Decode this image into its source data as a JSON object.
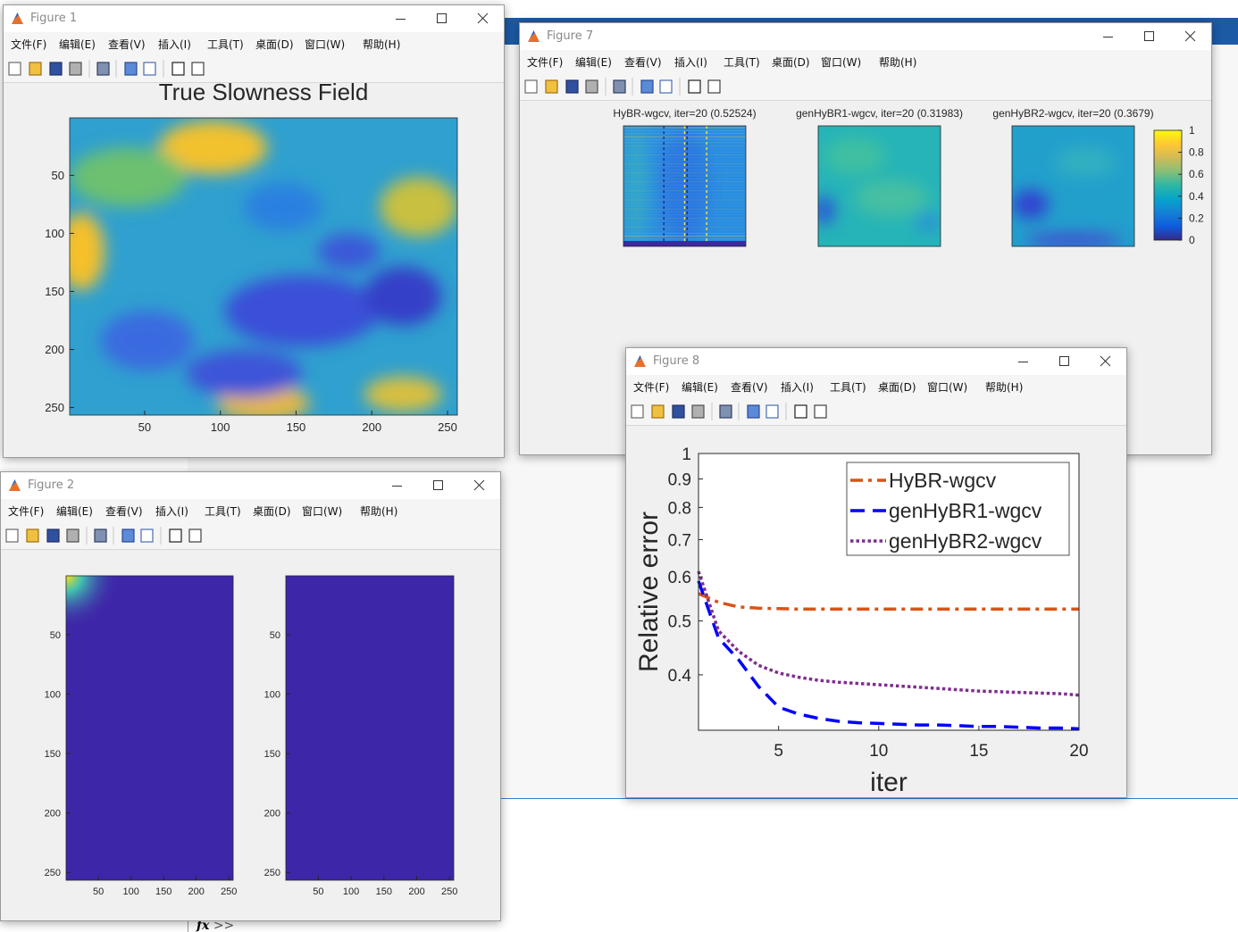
{
  "menu": [
    "文件(F)",
    "编辑(E)",
    "查看(V)",
    "插入(I)",
    "工具(T)",
    "桌面(D)",
    "窗口(W)",
    "帮助(H)"
  ],
  "prompt": {
    "icon": "fx",
    "text": ">>"
  },
  "windows": [
    {
      "title": "Figure 1",
      "charts": [
        {
          "type": "image",
          "title": "True Slowness Field",
          "xlim": [
            0.5,
            256.5
          ],
          "ylim": [
            256.5,
            0.5
          ],
          "xticks": [
            50,
            100,
            150,
            200,
            250
          ],
          "yticks": [
            50,
            100,
            150,
            200,
            250
          ]
        }
      ]
    },
    {
      "title": "Figure 7",
      "charts": [
        {
          "type": "image",
          "title": "HyBR-wgcv, iter=20 (0.52524)"
        },
        {
          "type": "image",
          "title": "genHyBR1-wgcv, iter=20 (0.31983)"
        },
        {
          "type": "image",
          "title": "genHyBR2-wgcv, iter=20 (0.3679)"
        },
        {
          "type": "colorbar",
          "ylim": [
            0,
            1
          ],
          "yticks": [
            0,
            0.2,
            0.4,
            0.6,
            0.8,
            1
          ]
        }
      ]
    },
    {
      "title": "Figure 8",
      "charts": [
        {
          "type": "line",
          "xlabel": "iter",
          "ylabel": "Relative error",
          "log_y": true,
          "legend": "upper right",
          "x": [
            1,
            2,
            3,
            4,
            5,
            6,
            7,
            8,
            9,
            10,
            11,
            12,
            13,
            14,
            15,
            16,
            17,
            18,
            19,
            20
          ],
          "xlim": [
            1,
            20
          ],
          "ylim": [
            0.318,
            1
          ],
          "xticks": [
            5,
            10,
            15,
            20
          ],
          "yticks": [
            0.4,
            0.5,
            0.6,
            0.7,
            0.8,
            0.9,
            1
          ],
          "series": [
            {
              "name": "HyBR-wgcv",
              "color": "#d95319",
              "linestyle": "dashdot",
              "values": [
                0.56,
                0.54,
                0.53,
                0.527,
                0.526,
                0.525,
                0.525,
                0.525,
                0.525,
                0.525,
                0.525,
                0.525,
                0.525,
                0.525,
                0.525,
                0.525,
                0.525,
                0.525,
                0.525,
                0.52524
              ]
            },
            {
              "name": "genHyBR1-wgcv",
              "color": "#0000ff",
              "linestyle": "dashed",
              "values": [
                0.59,
                0.466,
                0.426,
                0.381,
                0.35,
                0.34,
                0.334,
                0.33,
                0.328,
                0.327,
                0.326,
                0.325,
                0.325,
                0.324,
                0.323,
                0.323,
                0.322,
                0.321,
                0.321,
                0.31983
              ]
            },
            {
              "name": "genHyBR2-wgcv",
              "color": "#7e2f8e",
              "linestyle": "dotted",
              "values": [
                0.614,
                0.48,
                0.441,
                0.416,
                0.403,
                0.396,
                0.391,
                0.388,
                0.386,
                0.384,
                0.382,
                0.38,
                0.378,
                0.376,
                0.374,
                0.373,
                0.372,
                0.371,
                0.37,
                0.3679
              ]
            }
          ]
        }
      ]
    },
    {
      "title": "Figure 2",
      "charts": [
        {
          "type": "image",
          "xlim": [
            0.5,
            256.5
          ],
          "ylim": [
            256.5,
            0.5
          ],
          "xticks": [
            50,
            100,
            150,
            200,
            250
          ],
          "yticks": [
            50,
            100,
            150,
            200,
            250
          ]
        },
        {
          "type": "image",
          "xlim": [
            0.5,
            256.5
          ],
          "ylim": [
            256.5,
            0.5
          ],
          "xticks": [
            50,
            100,
            150,
            200,
            250
          ],
          "yticks": [
            50,
            100,
            150,
            200,
            250
          ]
        }
      ]
    }
  ]
}
